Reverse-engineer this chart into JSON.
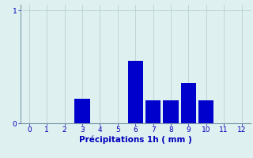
{
  "categories": [
    0,
    1,
    2,
    3,
    4,
    5,
    6,
    7,
    8,
    9,
    10,
    11,
    12
  ],
  "values": [
    0,
    0,
    0,
    0.22,
    0,
    0,
    0.55,
    0.2,
    0.2,
    0.36,
    0.2,
    0,
    0
  ],
  "bar_color": "#0000cc",
  "background_color": "#dff0f0",
  "grid_color": "#b0cccc",
  "xlabel": "Précipitations 1h ( mm )",
  "xlim": [
    -0.5,
    12.5
  ],
  "ylim": [
    0,
    1.05
  ],
  "yticks": [
    0,
    1
  ],
  "xticks": [
    0,
    1,
    2,
    3,
    4,
    5,
    6,
    7,
    8,
    9,
    10,
    11,
    12
  ],
  "xlabel_color": "#0000bb",
  "tick_color": "#0000bb",
  "axis_color": "#7799aa",
  "bar_width": 0.85,
  "tick_fontsize": 6.5,
  "xlabel_fontsize": 7.5
}
